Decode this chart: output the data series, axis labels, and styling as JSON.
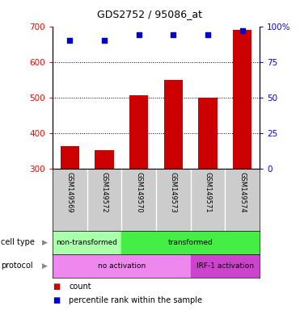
{
  "title": "GDS2752 / 95086_at",
  "samples": [
    "GSM149569",
    "GSM149572",
    "GSM149570",
    "GSM149573",
    "GSM149571",
    "GSM149574"
  ],
  "bar_values": [
    365,
    352,
    507,
    550,
    500,
    690
  ],
  "dot_values_pct": [
    90,
    90,
    94,
    94,
    94,
    97
  ],
  "ylim_left": [
    300,
    700
  ],
  "ylim_right": [
    0,
    100
  ],
  "right_ticks": [
    0,
    25,
    50,
    75,
    100
  ],
  "right_tick_labels": [
    "0",
    "25",
    "50",
    "75",
    "100%"
  ],
  "left_ticks": [
    300,
    400,
    500,
    600,
    700
  ],
  "bar_color": "#cc0000",
  "dot_color": "#0000cc",
  "bg_plot": "#ffffff",
  "bg_label_area": "#cccccc",
  "cell_type_groups": [
    {
      "label": "non-transformed",
      "start": 0,
      "end": 2,
      "color": "#aaffaa"
    },
    {
      "label": "transformed",
      "start": 2,
      "end": 6,
      "color": "#44ee44"
    }
  ],
  "protocol_groups": [
    {
      "label": "no activation",
      "start": 0,
      "end": 4,
      "color": "#ee88ee"
    },
    {
      "label": "IRF-1 activation",
      "start": 4,
      "end": 6,
      "color": "#cc44cc"
    }
  ],
  "legend_items": [
    "count",
    "percentile rank within the sample"
  ]
}
